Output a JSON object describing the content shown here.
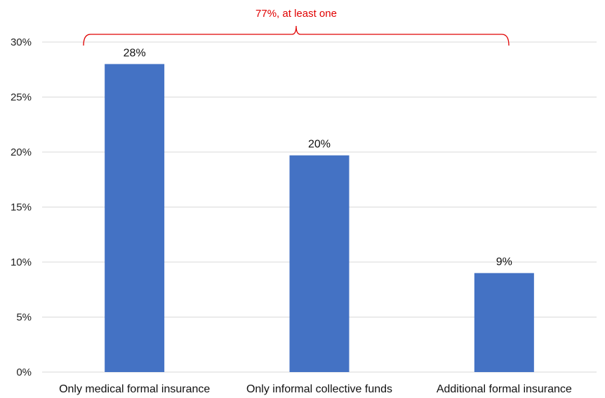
{
  "chart_data": {
    "type": "bar",
    "categories": [
      "Only medical formal insurance",
      "Only informal collective funds",
      "Additional formal insurance"
    ],
    "values": [
      28,
      19.7,
      9
    ],
    "data_labels": [
      "28%",
      "20%",
      "9%"
    ],
    "title": "",
    "xlabel": "",
    "ylabel": "",
    "ylim": [
      0,
      30
    ],
    "yticks": [
      0,
      5,
      10,
      15,
      20,
      25,
      30
    ],
    "ytick_labels": [
      "0%",
      "5%",
      "10%",
      "15%",
      "20%",
      "25%",
      "30%"
    ],
    "grid": true,
    "legend": "none",
    "annotation": {
      "text": "77%, at least one",
      "spans_categories": [
        "Only medical formal insurance",
        "Additional formal insurance"
      ]
    },
    "colors": {
      "bar": "#4472C4",
      "grid": "#D9D9D9",
      "annotation": "#E00000"
    }
  }
}
